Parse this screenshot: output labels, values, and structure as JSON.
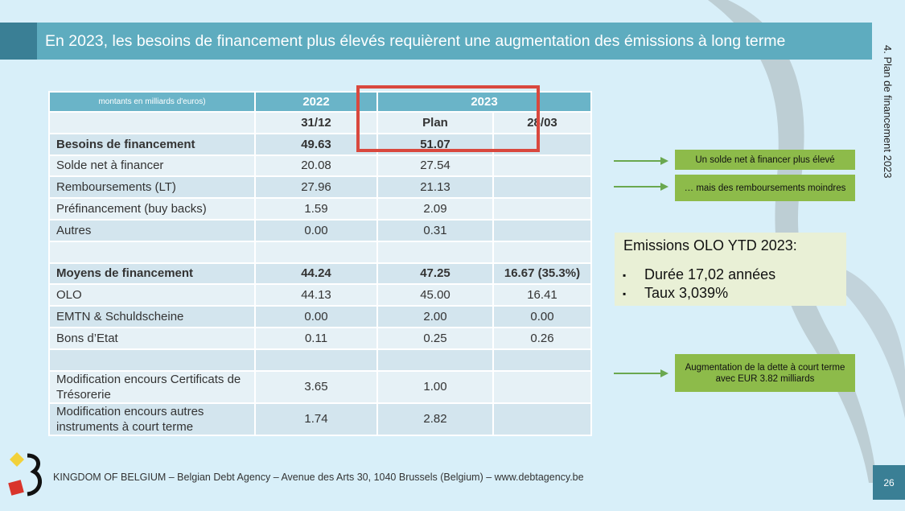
{
  "title": "En 2023, les besoins de financement plus élevés requièrent une augmentation des émissions à long terme",
  "side_label": "4. Plan de financement 2023",
  "table": {
    "unit_label": "montants en milliards d'euros)",
    "year_2022": "2022",
    "year_2023": "2023",
    "sub_headers": [
      "31/12",
      "Plan",
      "28/03"
    ],
    "rows": [
      {
        "label": "Besoins de financement",
        "v2022": "49.63",
        "plan": "51.07",
        "mar": ""
      },
      {
        "label": "Solde net à financer",
        "v2022": "20.08",
        "plan": "27.54",
        "mar": ""
      },
      {
        "label": "Remboursements (LT)",
        "v2022": "27.96",
        "plan": "21.13",
        "mar": ""
      },
      {
        "label": "Préfinancement (buy backs)",
        "v2022": "1.59",
        "plan": "2.09",
        "mar": ""
      },
      {
        "label": "Autres",
        "v2022": "0.00",
        "plan": "0.31",
        "mar": ""
      },
      {
        "label": "",
        "v2022": "",
        "plan": "",
        "mar": ""
      },
      {
        "label": "Moyens de financement",
        "v2022": "44.24",
        "plan": "47.25",
        "mar": "16.67 (35.3%)"
      },
      {
        "label": "OLO",
        "v2022": "44.13",
        "plan": "45.00",
        "mar": "16.41"
      },
      {
        "label": "EMTN & Schuldscheine",
        "v2022": "0.00",
        "plan": "2.00",
        "mar": "0.00"
      },
      {
        "label": "Bons d’Etat",
        "v2022": "0.11",
        "plan": "0.25",
        "mar": "0.26"
      },
      {
        "label": "",
        "v2022": "",
        "plan": "",
        "mar": ""
      },
      {
        "label": "Modification encours Certificats de Trésorerie",
        "v2022": "3.65",
        "plan": "1.00",
        "mar": ""
      },
      {
        "label": "Modification encours autres instruments à court terme",
        "v2022": "1.74",
        "plan": "2.82",
        "mar": ""
      }
    ]
  },
  "notes": {
    "solde": "Un solde net à financer plus élevé",
    "remboursements": "… mais des remboursements moindres",
    "dette": "Augmentation de la dette à court terme avec EUR 3.82 milliards"
  },
  "olo": {
    "title": "Emissions OLO YTD 2023:",
    "bullet": "▪",
    "items": [
      "Durée 17,02 années",
      "Taux 3,039%"
    ]
  },
  "footer": "KINGDOM OF BELGIUM – Belgian Debt Agency – Avenue des Arts 30, 1040 Brussels (Belgium) – www.debtagency.be",
  "page_number": "26",
  "colors": {
    "background": "#d8eff9",
    "title_bar": "#5eacbf",
    "table_header": "#6ab4c8",
    "highlight": "#d9483e",
    "note_green": "#8dbb4a",
    "olo_box": "#e9f0d6"
  }
}
